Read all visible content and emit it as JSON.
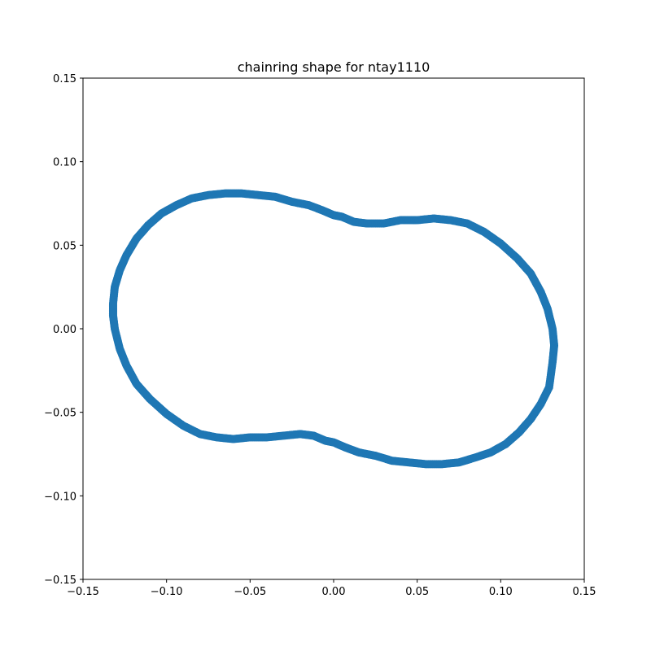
{
  "chart_data": {
    "type": "scatter",
    "title": "chainring shape for ntay1110",
    "xlabel": "",
    "ylabel": "",
    "xlim": [
      -0.15,
      0.15
    ],
    "ylim": [
      -0.15,
      0.15
    ],
    "xticks": [
      "−0.15",
      "−0.10",
      "−0.05",
      "0.00",
      "0.05",
      "0.10",
      "0.15"
    ],
    "yticks": [
      "−0.15",
      "−0.10",
      "−0.05",
      "0.00",
      "0.05",
      "0.10",
      "0.15"
    ],
    "xtick_values": [
      -0.15,
      -0.1,
      -0.05,
      0.0,
      0.05,
      0.1,
      0.15
    ],
    "ytick_values": [
      -0.15,
      -0.1,
      -0.05,
      0.0,
      0.05,
      0.1,
      0.15
    ],
    "grid": false,
    "marker_color": "#1f77b4",
    "points": [
      [
        -0.132,
        0.015
      ],
      [
        -0.131,
        0.025
      ],
      [
        -0.128,
        0.035
      ],
      [
        -0.124,
        0.044
      ],
      [
        -0.118,
        0.054
      ],
      [
        -0.111,
        0.062
      ],
      [
        -0.103,
        0.069
      ],
      [
        -0.094,
        0.074
      ],
      [
        -0.085,
        0.078
      ],
      [
        -0.075,
        0.08
      ],
      [
        -0.065,
        0.081
      ],
      [
        -0.055,
        0.081
      ],
      [
        -0.045,
        0.08
      ],
      [
        -0.035,
        0.079
      ],
      [
        -0.025,
        0.076
      ],
      [
        -0.015,
        0.074
      ],
      [
        -0.007,
        0.071
      ],
      [
        0.0,
        0.068
      ],
      [
        0.005,
        0.067
      ],
      [
        0.012,
        0.064
      ],
      [
        0.02,
        0.063
      ],
      [
        0.03,
        0.063
      ],
      [
        0.04,
        0.065
      ],
      [
        0.05,
        0.065
      ],
      [
        0.06,
        0.066
      ],
      [
        0.07,
        0.065
      ],
      [
        0.08,
        0.063
      ],
      [
        0.09,
        0.058
      ],
      [
        0.1,
        0.051
      ],
      [
        0.11,
        0.042
      ],
      [
        0.118,
        0.033
      ],
      [
        0.124,
        0.022
      ],
      [
        0.128,
        0.012
      ],
      [
        0.131,
        0.0
      ],
      [
        0.132,
        -0.01
      ],
      [
        0.131,
        -0.02
      ],
      [
        0.129,
        -0.035
      ],
      [
        0.124,
        -0.045
      ],
      [
        0.118,
        -0.054
      ],
      [
        0.111,
        -0.062
      ],
      [
        0.103,
        -0.069
      ],
      [
        0.094,
        -0.074
      ],
      [
        0.085,
        -0.077
      ],
      [
        0.075,
        -0.08
      ],
      [
        0.065,
        -0.081
      ],
      [
        0.055,
        -0.081
      ],
      [
        0.045,
        -0.08
      ],
      [
        0.035,
        -0.079
      ],
      [
        0.025,
        -0.076
      ],
      [
        0.015,
        -0.074
      ],
      [
        0.007,
        -0.071
      ],
      [
        0.0,
        -0.068
      ],
      [
        -0.005,
        -0.067
      ],
      [
        -0.012,
        -0.064
      ],
      [
        -0.02,
        -0.063
      ],
      [
        -0.03,
        -0.064
      ],
      [
        -0.04,
        -0.065
      ],
      [
        -0.05,
        -0.065
      ],
      [
        -0.06,
        -0.066
      ],
      [
        -0.07,
        -0.065
      ],
      [
        -0.08,
        -0.063
      ],
      [
        -0.09,
        -0.058
      ],
      [
        -0.1,
        -0.051
      ],
      [
        -0.11,
        -0.042
      ],
      [
        -0.118,
        -0.033
      ],
      [
        -0.124,
        -0.022
      ],
      [
        -0.128,
        -0.012
      ],
      [
        -0.131,
        0.0
      ],
      [
        -0.132,
        0.008
      ]
    ]
  }
}
